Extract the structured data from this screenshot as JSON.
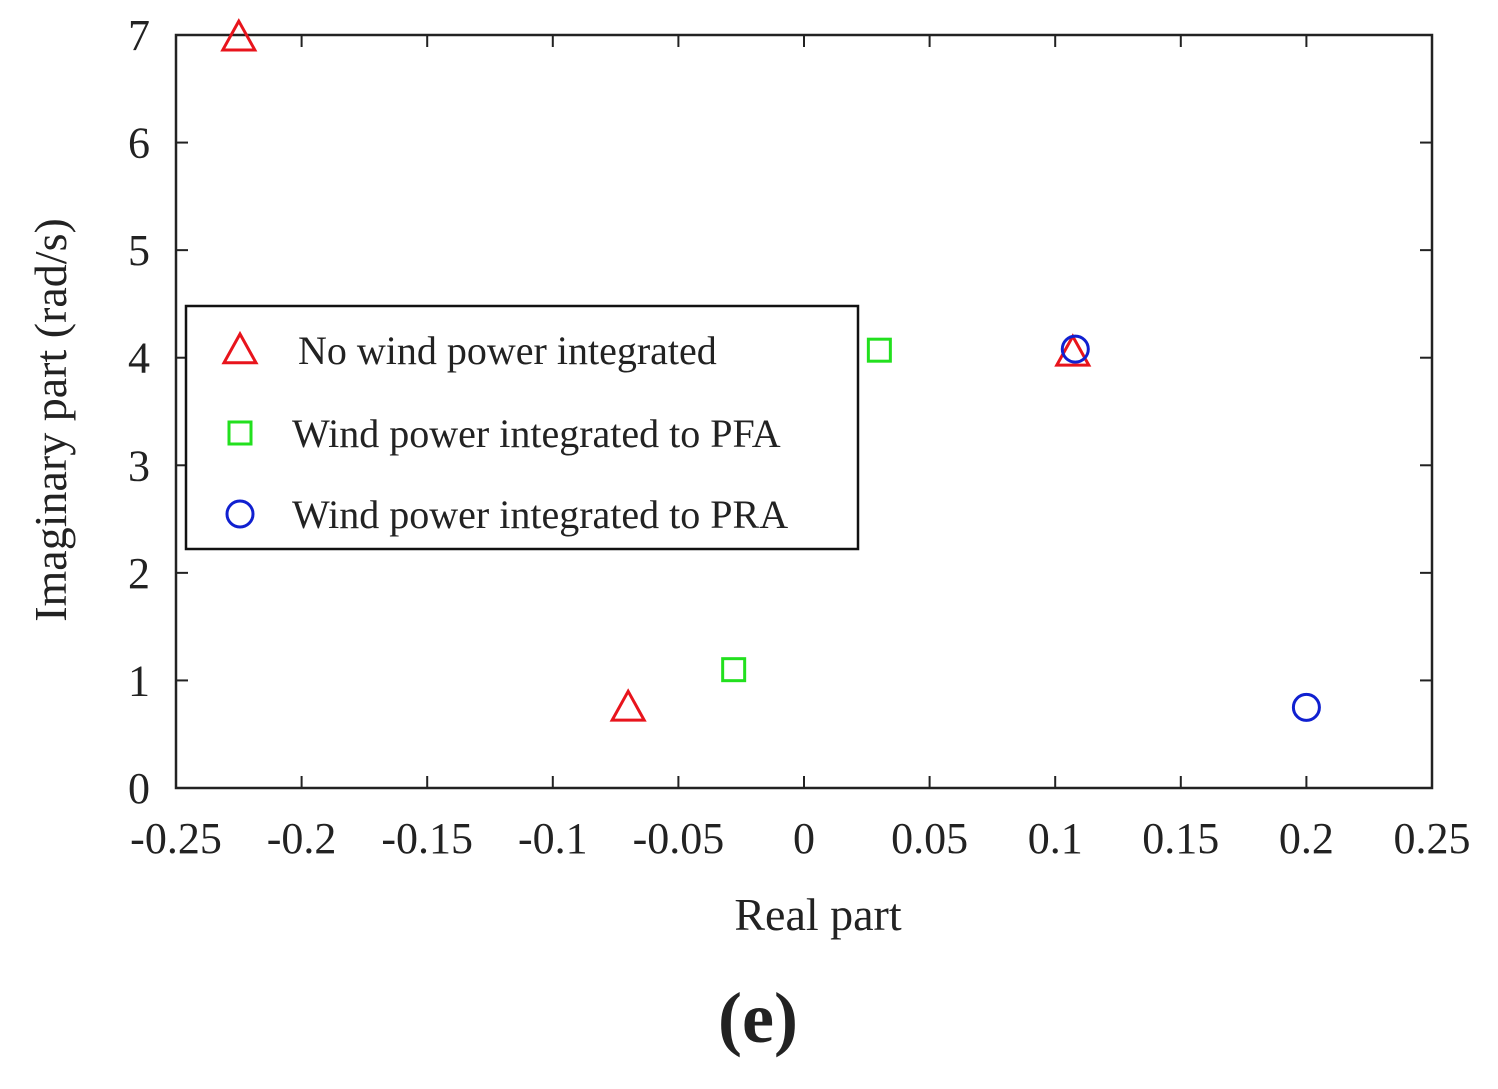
{
  "chart_data": {
    "type": "scatter",
    "title": "",
    "xlabel": "Real part",
    "ylabel": "Imaginary part (rad/s)",
    "xlim": [
      -0.25,
      0.25
    ],
    "ylim": [
      0,
      7
    ],
    "xticks": [
      -0.25,
      -0.2,
      -0.15,
      -0.1,
      -0.05,
      0,
      0.05,
      0.1,
      0.15,
      0.2,
      0.25
    ],
    "xtick_labels": [
      "-0.25",
      "-0.2",
      "-0.15",
      "-0.1",
      "-0.05",
      "0",
      "0.05",
      "0.1",
      "0.15",
      "0.2",
      "0.25"
    ],
    "yticks": [
      0,
      1,
      2,
      3,
      4,
      5,
      6,
      7
    ],
    "ytick_labels": [
      "0",
      "1",
      "2",
      "3",
      "4",
      "5",
      "6",
      "7"
    ],
    "grid": false,
    "legend_position": "left-middle",
    "series": [
      {
        "name": "No wind power integrated",
        "marker": "triangle",
        "color": "#e8141c",
        "points": [
          {
            "x": -0.225,
            "y": 6.98
          },
          {
            "x": -0.07,
            "y": 0.75
          },
          {
            "x": 0.107,
            "y": 4.05
          }
        ]
      },
      {
        "name": "Wind power integrated to PFA",
        "marker": "square",
        "color": "#22e01e",
        "points": [
          {
            "x": -0.028,
            "y": 1.1
          },
          {
            "x": 0.03,
            "y": 4.07
          }
        ]
      },
      {
        "name": "Wind power integrated to PRA",
        "marker": "circle",
        "color": "#1020d0",
        "points": [
          {
            "x": 0.108,
            "y": 4.08
          },
          {
            "x": 0.2,
            "y": 0.75
          }
        ]
      }
    ],
    "panel_label": "(e)"
  }
}
